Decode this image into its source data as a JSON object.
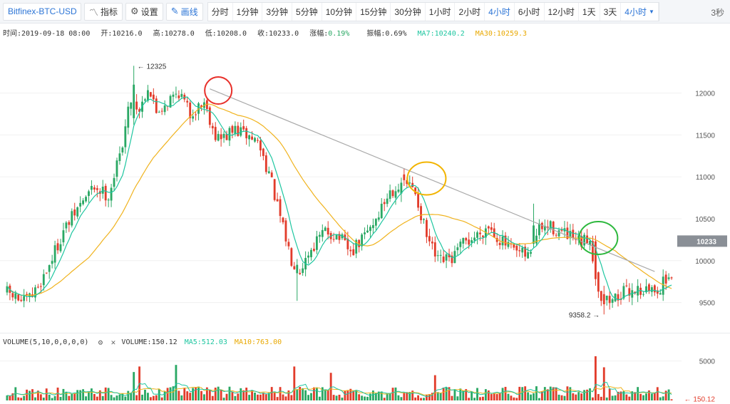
{
  "toolbar": {
    "symbol": "Bitfinex-BTC-USD",
    "indicator_label": "指标",
    "settings_label": "设置",
    "draw_label": "画线",
    "periods": [
      "分时",
      "1分钟",
      "3分钟",
      "5分钟",
      "10分钟",
      "15分钟",
      "30分钟",
      "1小时",
      "2小时",
      "4小时",
      "6小时",
      "12小时",
      "1天",
      "3天"
    ],
    "active_period": "4小时",
    "period_dropdown": "4小时",
    "refresh": "3秒"
  },
  "info": {
    "time": "时间:2019-09-18 08:00",
    "open": "开:10216.0",
    "high": "高:10278.0",
    "low": "低:10208.0",
    "close": "收:10233.0",
    "change": "涨幅:0.19%",
    "amplitude": "振幅:0.69%",
    "ma7": "MA7:10240.2",
    "ma30": "MA30:10259.3"
  },
  "volume_info": {
    "label": "VOLUME(5,10,0,0,0,0)",
    "volume": "VOLUME:150.12",
    "ma5": "MA5:512.03",
    "ma10": "MA10:763.00"
  },
  "colors": {
    "up": "#2aa864",
    "down": "#e23c2b",
    "ma7": "#1ec6a0",
    "ma30": "#f0b31e",
    "trendline": "#a9a9a9",
    "grid": "#f0f0f0",
    "accent": "#2b74d6",
    "circle_red": "#e8302a",
    "circle_orange": "#f2b400",
    "circle_green": "#2db83d"
  },
  "chart_data": {
    "type": "candlestick",
    "y_ticks": [
      9500,
      10000,
      10500,
      11000,
      11500,
      12000
    ],
    "ylim": [
      9250,
      12600
    ],
    "current_price": "10233",
    "annotations": {
      "high": "← 12325",
      "low": "9358.2 →"
    },
    "volume_y_tick": "5000",
    "volume_ylim": [
      0,
      6500
    ],
    "volume_current": "← 150.12",
    "waypoints": [
      [
        0,
        9620
      ],
      [
        6,
        9500
      ],
      [
        9,
        9580
      ],
      [
        14,
        9880
      ],
      [
        20,
        10350
      ],
      [
        27,
        10720
      ],
      [
        31,
        10880
      ],
      [
        36,
        10780
      ],
      [
        40,
        11250
      ],
      [
        44,
        11950
      ],
      [
        47,
        11800
      ],
      [
        50,
        12080
      ],
      [
        53,
        11780
      ],
      [
        57,
        11900
      ],
      [
        61,
        12020
      ],
      [
        65,
        11750
      ],
      [
        70,
        11900
      ],
      [
        74,
        11500
      ],
      [
        76,
        11450
      ],
      [
        81,
        11560
      ],
      [
        86,
        11480
      ],
      [
        89,
        11420
      ],
      [
        93,
        11050
      ],
      [
        97,
        10500
      ],
      [
        101,
        10020
      ],
      [
        104,
        9900
      ],
      [
        108,
        10150
      ],
      [
        113,
        10350
      ],
      [
        118,
        10280
      ],
      [
        122,
        10080
      ],
      [
        126,
        10250
      ],
      [
        131,
        10500
      ],
      [
        136,
        10830
      ],
      [
        141,
        10950
      ],
      [
        145,
        10820
      ],
      [
        149,
        10280
      ],
      [
        153,
        9980
      ],
      [
        158,
        10020
      ],
      [
        162,
        10200
      ],
      [
        166,
        10280
      ],
      [
        171,
        10420
      ],
      [
        175,
        10250
      ],
      [
        180,
        10100
      ],
      [
        185,
        10050
      ],
      [
        189,
        10380
      ],
      [
        193,
        10400
      ],
      [
        197,
        10330
      ],
      [
        201,
        10250
      ],
      [
        204,
        10200
      ],
      [
        207,
        10280
      ],
      [
        209,
        9830
      ],
      [
        211,
        9560
      ],
      [
        214,
        9520
      ],
      [
        218,
        9600
      ],
      [
        223,
        9660
      ],
      [
        228,
        9640
      ],
      [
        232,
        9680
      ],
      [
        235,
        9820
      ]
    ],
    "special_candles": [
      {
        "i": 45,
        "o": 11700,
        "c": 12100,
        "h": 12325,
        "l": 11620
      },
      {
        "i": 103,
        "o": 9850,
        "c": 9950,
        "h": 10020,
        "l": 9520
      },
      {
        "i": 140,
        "o": 10800,
        "c": 10930,
        "h": 10990,
        "l": 10700
      },
      {
        "i": 187,
        "o": 10200,
        "c": 10420,
        "h": 10680,
        "l": 10150
      },
      {
        "i": 209,
        "o": 10230,
        "c": 9780,
        "h": 10300,
        "l": 9700
      },
      {
        "i": 212,
        "o": 9600,
        "c": 9480,
        "h": 9700,
        "l": 9358.2
      },
      {
        "i": 235,
        "o": 9780,
        "c": 9800,
        "h": 9850,
        "l": 9760
      },
      {
        "i": 236,
        "o": 9800,
        "c": 9790,
        "h": 9810,
        "l": 9770
      }
    ],
    "n_candles": 237,
    "trendline": [
      [
        72,
        12050
      ],
      [
        230,
        9870
      ]
    ],
    "circles": [
      {
        "i": 75,
        "price": 12030,
        "color": "red"
      },
      {
        "i": 149,
        "price": 10980,
        "color": "orange"
      },
      {
        "i": 210,
        "price": 10270,
        "color": "green"
      }
    ],
    "volume_spikes": [
      [
        45,
        3600
      ],
      [
        47,
        4300
      ],
      [
        60,
        4500
      ],
      [
        102,
        4300
      ],
      [
        115,
        3500
      ],
      [
        152,
        3200
      ],
      [
        209,
        5600
      ],
      [
        212,
        4200
      ]
    ]
  }
}
